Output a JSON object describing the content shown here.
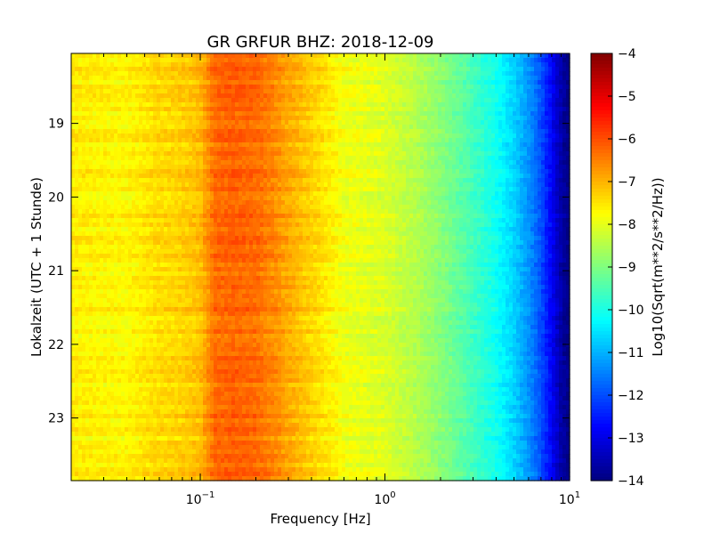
{
  "chart_data": {
    "type": "heatmap",
    "title": "GR GRFUR BHZ: 2018-12-09",
    "xlabel": "Frequency [Hz]",
    "ylabel": "Lokalzeit (UTC + 1 Stunde)",
    "x_scale": "log",
    "xlim": [
      0.02,
      10
    ],
    "x_ticks": [
      {
        "value": 0.1,
        "base": "10",
        "exp": "−1"
      },
      {
        "value": 1,
        "base": "10",
        "exp": "0"
      },
      {
        "value": 10,
        "base": "10",
        "exp": "1"
      }
    ],
    "ylim": [
      18.05,
      23.85
    ],
    "y_inverted": true,
    "y_ticks": [
      {
        "value": 19,
        "label": "19"
      },
      {
        "value": 20,
        "label": "20"
      },
      {
        "value": 21,
        "label": "21"
      },
      {
        "value": 22,
        "label": "22"
      },
      {
        "value": 23,
        "label": "23"
      }
    ],
    "colormap": "jet",
    "colorbar": {
      "label": "Log10(Sqrt(m**2/s**2/Hz))",
      "range": [
        -14,
        -4
      ],
      "ticks": [
        {
          "value": -4,
          "label": "−4"
        },
        {
          "value": -5,
          "label": "−5"
        },
        {
          "value": -6,
          "label": "−6"
        },
        {
          "value": -7,
          "label": "−7"
        },
        {
          "value": -8,
          "label": "−8"
        },
        {
          "value": -9,
          "label": "−9"
        },
        {
          "value": -10,
          "label": "−10"
        },
        {
          "value": -11,
          "label": "−11"
        },
        {
          "value": -12,
          "label": "−12"
        },
        {
          "value": -13,
          "label": "−13"
        },
        {
          "value": -14,
          "label": "−14"
        }
      ]
    },
    "spectrum_profile": {
      "freq_hz": [
        0.02,
        0.04,
        0.06,
        0.08,
        0.1,
        0.12,
        0.15,
        0.2,
        0.25,
        0.3,
        0.4,
        0.5,
        0.6,
        0.8,
        1.0,
        1.5,
        2.0,
        3.0,
        4.0,
        5.0,
        6.0,
        7.0,
        8.0,
        9.0,
        10.0
      ],
      "level": [
        -7.6,
        -7.7,
        -7.4,
        -7.3,
        -7.1,
        -6.3,
        -6.2,
        -6.3,
        -6.6,
        -6.9,
        -7.3,
        -7.6,
        -7.9,
        -8.0,
        -8.1,
        -8.5,
        -8.9,
        -9.6,
        -10.1,
        -10.7,
        -11.3,
        -12.0,
        -12.8,
        -13.6,
        -14.0
      ]
    }
  }
}
